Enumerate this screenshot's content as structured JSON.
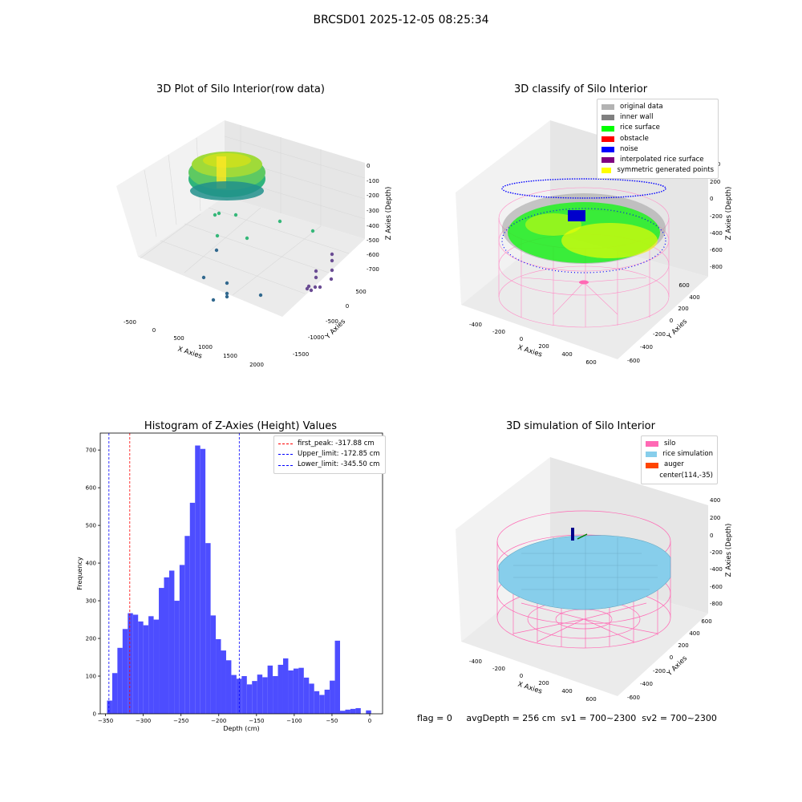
{
  "suptitle": "BRCSD01 2025-12-05 08:25:34",
  "panels": {
    "p1": {
      "title": "3D Plot of Silo Interior(row data)",
      "xlabel": "X Axies",
      "ylabel": "Y Axies",
      "zlabel": "Z Axies (Depth)",
      "xticks": [
        "-500",
        "0",
        "500",
        "1000",
        "1500",
        "2000"
      ],
      "yticks": [
        "500",
        "0",
        "-500",
        "-1000",
        "-1500"
      ],
      "zticks": [
        "0",
        "-100",
        "-200",
        "-300",
        "-400",
        "-500",
        "-600",
        "-700"
      ]
    },
    "p2": {
      "title": "3D classify of Silo Interior",
      "xlabel": "X Axies",
      "ylabel": "Y Axies",
      "zlabel": "Z Axies (Depth)",
      "xticks": [
        "-400",
        "-200",
        "0",
        "200",
        "400",
        "600"
      ],
      "yticks": [
        "600",
        "400",
        "200",
        "0",
        "-200",
        "-400",
        "-600"
      ],
      "zticks": [
        "400",
        "200",
        "0",
        "-200",
        "-400",
        "-600",
        "-800"
      ],
      "legend": [
        {
          "label": "original data",
          "color": "#b3b3b3"
        },
        {
          "label": "inner wall",
          "color": "#808080"
        },
        {
          "label": "rice surface",
          "color": "#00ff00"
        },
        {
          "label": "obstacle",
          "color": "#ff0000"
        },
        {
          "label": "noise",
          "color": "#0000ff"
        },
        {
          "label": "interpolated rice surface",
          "color": "#800080"
        },
        {
          "label": "symmetric generated points",
          "color": "#ffff00"
        }
      ]
    },
    "p4": {
      "title": "3D simulation of Silo Interior",
      "xlabel": "X Axies",
      "ylabel": "Y Axies",
      "zlabel": "Z Axies (Depth)",
      "xticks": [
        "-400",
        "-200",
        "0",
        "200",
        "400",
        "600"
      ],
      "yticks": [
        "600",
        "400",
        "200",
        "0",
        "-200",
        "-400",
        "-600"
      ],
      "zticks": [
        "400",
        "200",
        "0",
        "-200",
        "-400",
        "-600",
        "-800"
      ],
      "legend": [
        {
          "label": "silo",
          "color": "#ff69b4"
        },
        {
          "label": "rice simulation",
          "color": "#87ceeb"
        },
        {
          "label": "auger",
          "color": "#ff4500"
        },
        {
          "label": "center(114,-35)",
          "color": ""
        }
      ]
    }
  },
  "footer": "flag = 0     avgDepth = 256 cm  sv1 = 700~2300  sv2 = 700~2300",
  "chart_data": [
    {
      "type": "histogram",
      "title": "Histogram of Z-Axies (Height) Values",
      "xlabel": "Depth (cm)",
      "ylabel": "Frequency",
      "xlim": [
        -357,
        17
      ],
      "ylim": [
        0,
        745
      ],
      "xticks": [
        -350,
        -300,
        -250,
        -200,
        -150,
        -100,
        -50,
        0
      ],
      "yticks": [
        0,
        100,
        200,
        300,
        400,
        500,
        600,
        700
      ],
      "bar_color": "#4d4dff",
      "bin_start": -348,
      "bin_width": 6.86,
      "values": [
        35,
        108,
        175,
        225,
        267,
        263,
        245,
        235,
        259,
        250,
        334,
        362,
        380,
        300,
        395,
        472,
        560,
        712,
        703,
        453,
        261,
        198,
        168,
        142,
        103,
        93,
        100,
        78,
        87,
        104,
        97,
        128,
        100,
        130,
        147,
        115,
        120,
        122,
        96,
        80,
        60,
        50,
        64,
        88,
        194,
        8,
        11,
        13,
        15,
        0,
        9
      ],
      "lines": [
        {
          "label": "first_peak: -317.88 cm",
          "x": -317.88,
          "color": "#ff0000"
        },
        {
          "label": "Upper_limit: -172.85 cm",
          "x": -172.85,
          "color": "#0000ff"
        },
        {
          "label": "Lower_limit: -345.50 cm",
          "x": -345.5,
          "color": "#0000ff"
        }
      ]
    }
  ]
}
